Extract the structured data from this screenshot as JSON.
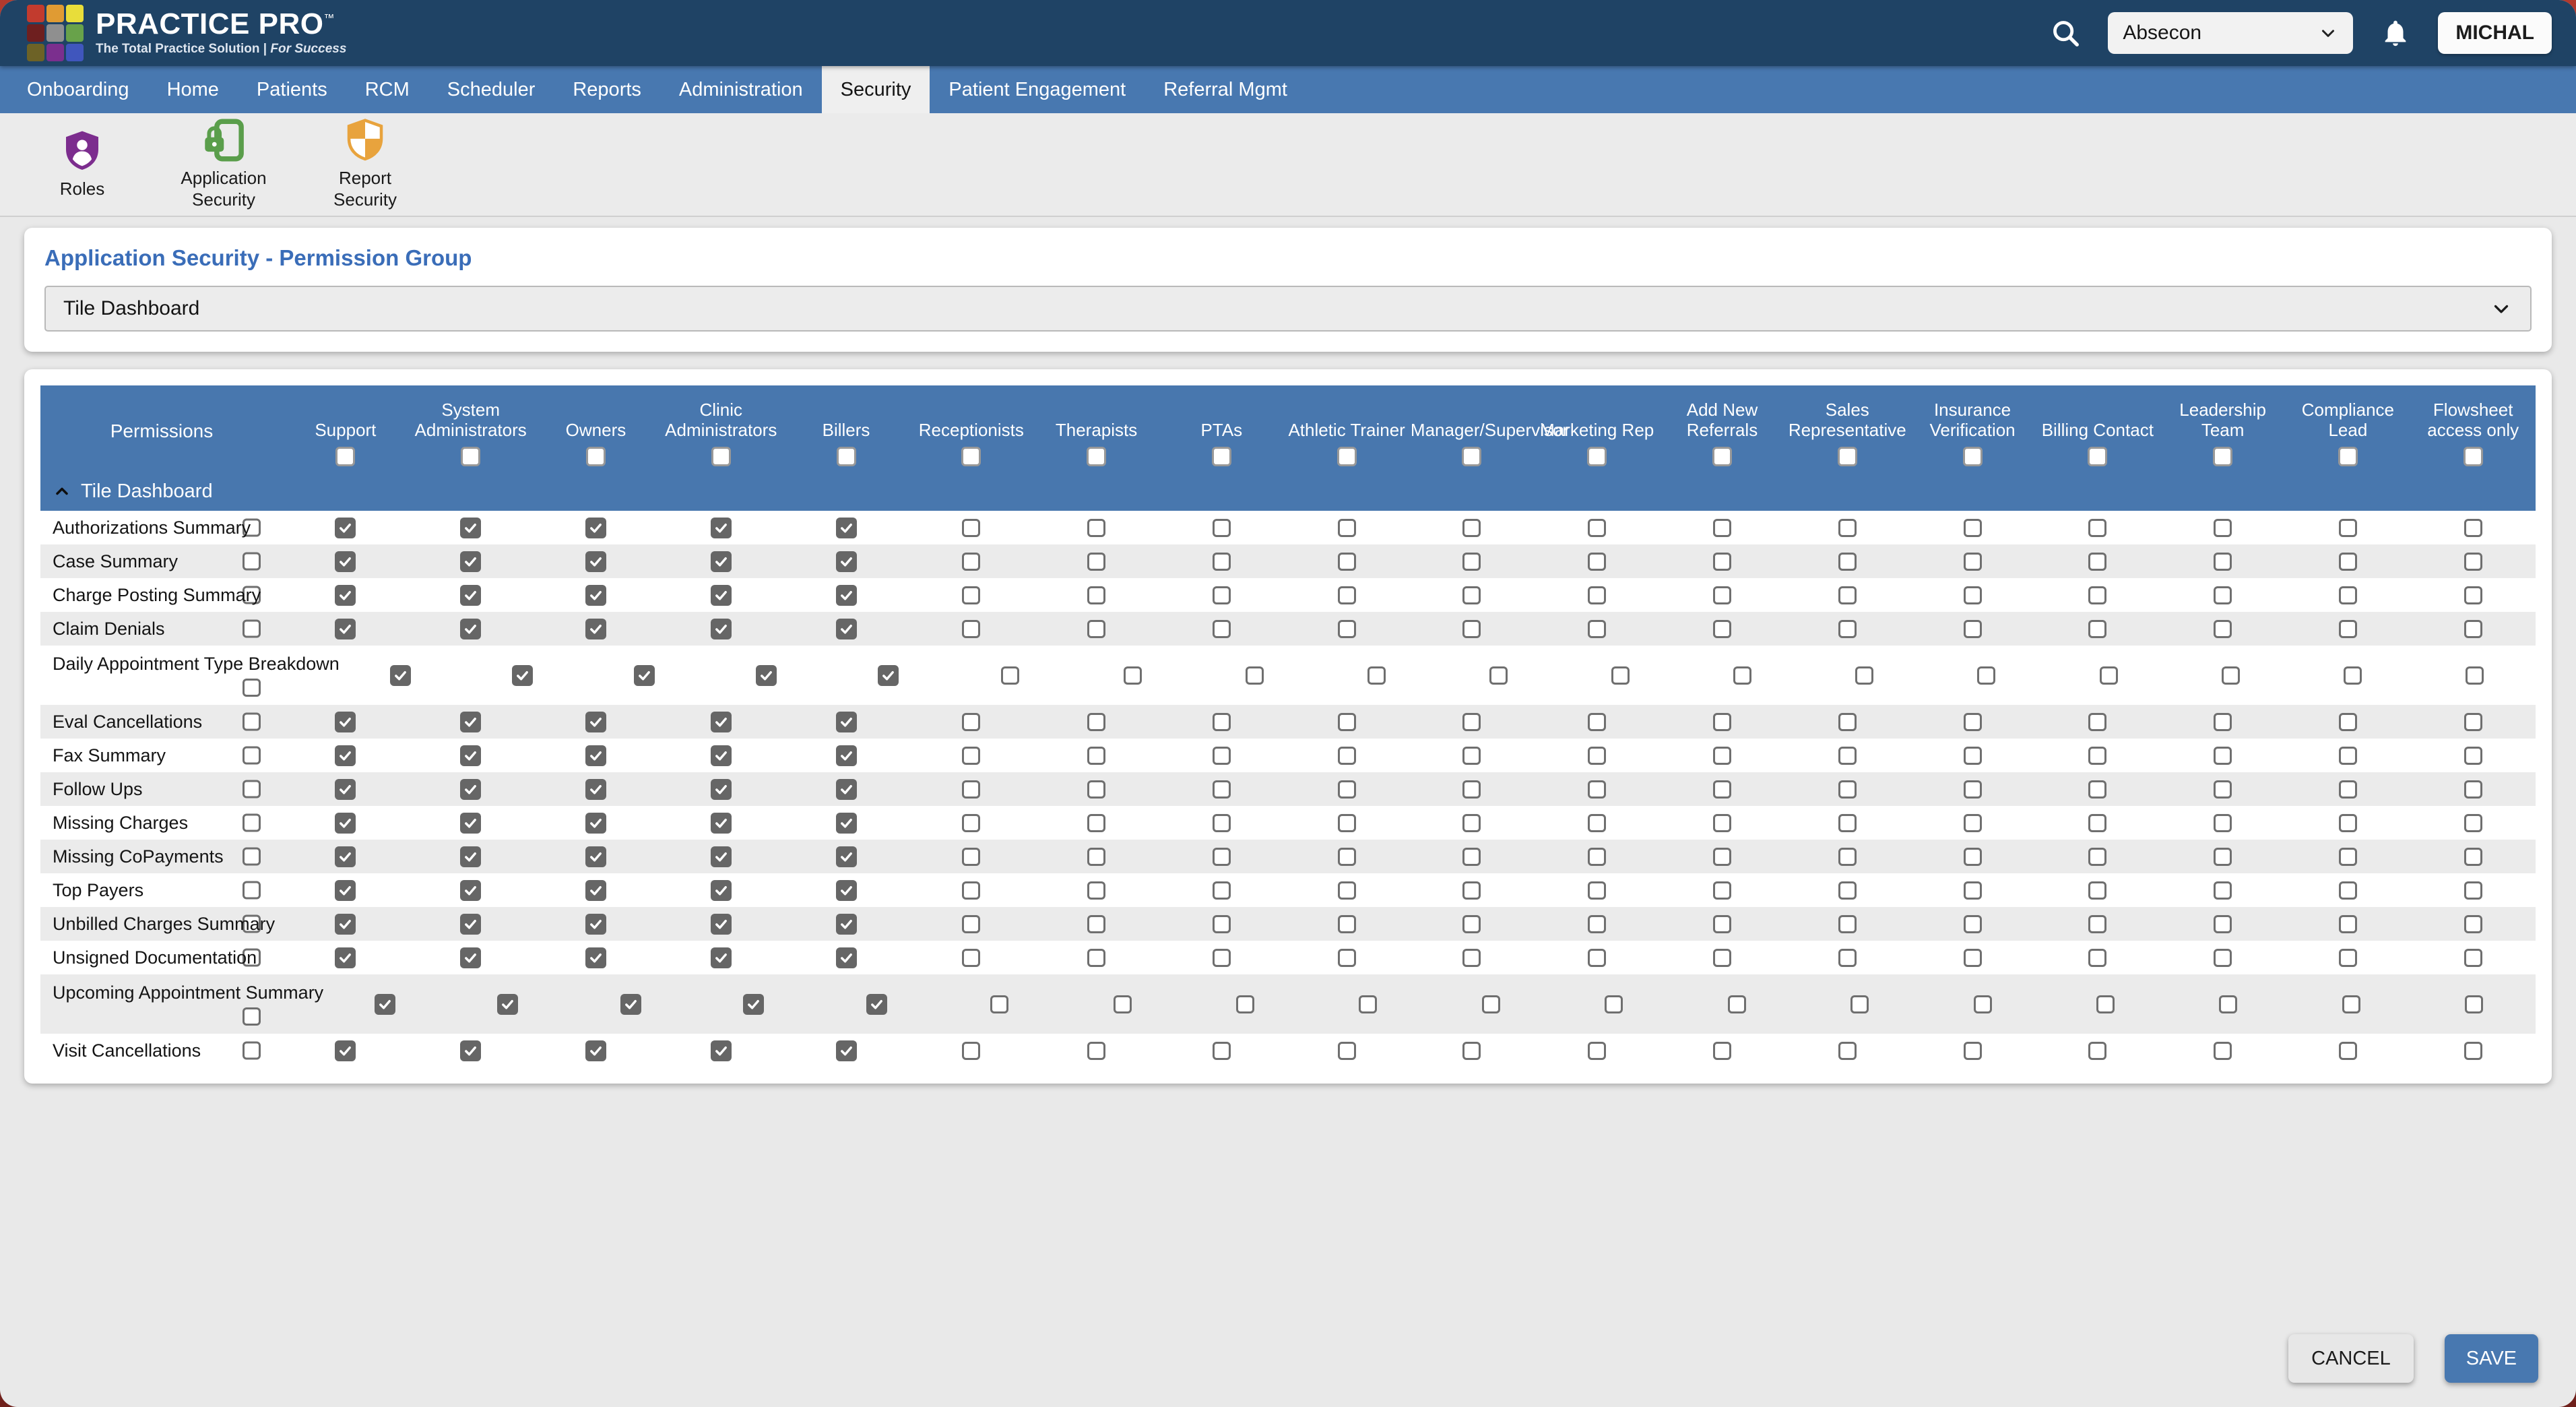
{
  "brand": {
    "name": "Practice Pro",
    "trademark": "™",
    "tagline": "The Total Practice Solution |",
    "tagline_emphasis": "For Success"
  },
  "header": {
    "search_icon": "search-icon",
    "clinic_select": {
      "value": "Absecon"
    },
    "notifications_icon": "bell-icon",
    "user_button": "MICHAL"
  },
  "nav": {
    "tabs": [
      {
        "label": "Onboarding",
        "active": false
      },
      {
        "label": "Home",
        "active": false
      },
      {
        "label": "Patients",
        "active": false
      },
      {
        "label": "RCM",
        "active": false
      },
      {
        "label": "Scheduler",
        "active": false
      },
      {
        "label": "Reports",
        "active": false
      },
      {
        "label": "Administration",
        "active": false
      },
      {
        "label": "Security",
        "active": true
      },
      {
        "label": "Patient Engagement",
        "active": false
      },
      {
        "label": "Referral Mgmt",
        "active": false
      }
    ]
  },
  "toolbar": {
    "items": [
      {
        "label": "Roles",
        "icon": "roles-shield-person-icon"
      },
      {
        "label": "Application Security",
        "icon": "application-security-lock-icon"
      },
      {
        "label": "Report Security",
        "icon": "report-security-shield-icon"
      }
    ]
  },
  "content": {
    "title": "Application Security - Permission Group",
    "group_select": {
      "value": "Tile Dashboard"
    }
  },
  "table": {
    "permissions_header": "Permissions",
    "group": {
      "label": "Tile Dashboard",
      "collapse_icon": "chevron-up-icon"
    },
    "role_columns": [
      {
        "label": "Support",
        "checked": false
      },
      {
        "label": "System Administrators",
        "checked": false
      },
      {
        "label": "Owners",
        "checked": false
      },
      {
        "label": "Clinic Administrators",
        "checked": false
      },
      {
        "label": "Billers",
        "checked": false
      },
      {
        "label": "Receptionists",
        "checked": false
      },
      {
        "label": "Therapists",
        "checked": false
      },
      {
        "label": "PTAs",
        "checked": false
      },
      {
        "label": "Athletic Trainer",
        "checked": false
      },
      {
        "label": "Manager/Supervisor",
        "checked": false
      },
      {
        "label": "Marketing Rep",
        "checked": false
      },
      {
        "label": "Add New Referrals",
        "checked": false
      },
      {
        "label": "Sales Representative",
        "checked": false
      },
      {
        "label": "Insurance Verification",
        "checked": false
      },
      {
        "label": "Billing Contact",
        "checked": false
      },
      {
        "label": "Leadership Team",
        "checked": false
      },
      {
        "label": "Compliance Lead",
        "checked": false
      },
      {
        "label": "Flowsheet access only",
        "checked": false
      }
    ],
    "rows": [
      {
        "label": "Authorizations Summary",
        "select_checked": false,
        "checks": [
          true,
          true,
          true,
          true,
          true,
          false,
          false,
          false,
          false,
          false,
          false,
          false,
          false,
          false,
          false,
          false,
          false,
          false
        ]
      },
      {
        "label": "Case Summary",
        "select_checked": false,
        "checks": [
          true,
          true,
          true,
          true,
          true,
          false,
          false,
          false,
          false,
          false,
          false,
          false,
          false,
          false,
          false,
          false,
          false,
          false
        ]
      },
      {
        "label": "Charge Posting Summary",
        "select_checked": false,
        "checks": [
          true,
          true,
          true,
          true,
          true,
          false,
          false,
          false,
          false,
          false,
          false,
          false,
          false,
          false,
          false,
          false,
          false,
          false
        ]
      },
      {
        "label": "Claim Denials",
        "select_checked": false,
        "checks": [
          true,
          true,
          true,
          true,
          true,
          false,
          false,
          false,
          false,
          false,
          false,
          false,
          false,
          false,
          false,
          false,
          false,
          false
        ]
      },
      {
        "label": "Daily Appointment Type Breakdown",
        "select_checked": false,
        "checks": [
          true,
          true,
          true,
          true,
          true,
          false,
          false,
          false,
          false,
          false,
          false,
          false,
          false,
          false,
          false,
          false,
          false,
          false
        ]
      },
      {
        "label": "Eval Cancellations",
        "select_checked": false,
        "checks": [
          true,
          true,
          true,
          true,
          true,
          false,
          false,
          false,
          false,
          false,
          false,
          false,
          false,
          false,
          false,
          false,
          false,
          false
        ]
      },
      {
        "label": "Fax Summary",
        "select_checked": false,
        "checks": [
          true,
          true,
          true,
          true,
          true,
          false,
          false,
          false,
          false,
          false,
          false,
          false,
          false,
          false,
          false,
          false,
          false,
          false
        ]
      },
      {
        "label": "Follow Ups",
        "select_checked": false,
        "checks": [
          true,
          true,
          true,
          true,
          true,
          false,
          false,
          false,
          false,
          false,
          false,
          false,
          false,
          false,
          false,
          false,
          false,
          false
        ]
      },
      {
        "label": "Missing Charges",
        "select_checked": false,
        "checks": [
          true,
          true,
          true,
          true,
          true,
          false,
          false,
          false,
          false,
          false,
          false,
          false,
          false,
          false,
          false,
          false,
          false,
          false
        ]
      },
      {
        "label": "Missing CoPayments",
        "select_checked": false,
        "checks": [
          true,
          true,
          true,
          true,
          true,
          false,
          false,
          false,
          false,
          false,
          false,
          false,
          false,
          false,
          false,
          false,
          false,
          false
        ]
      },
      {
        "label": "Top Payers",
        "select_checked": false,
        "checks": [
          true,
          true,
          true,
          true,
          true,
          false,
          false,
          false,
          false,
          false,
          false,
          false,
          false,
          false,
          false,
          false,
          false,
          false
        ]
      },
      {
        "label": "Unbilled Charges Summary",
        "select_checked": false,
        "checks": [
          true,
          true,
          true,
          true,
          true,
          false,
          false,
          false,
          false,
          false,
          false,
          false,
          false,
          false,
          false,
          false,
          false,
          false
        ]
      },
      {
        "label": "Unsigned Documentation",
        "select_checked": false,
        "checks": [
          true,
          true,
          true,
          true,
          true,
          false,
          false,
          false,
          false,
          false,
          false,
          false,
          false,
          false,
          false,
          false,
          false,
          false
        ]
      },
      {
        "label": "Upcoming Appointment Summary",
        "select_checked": false,
        "checks": [
          true,
          true,
          true,
          true,
          true,
          false,
          false,
          false,
          false,
          false,
          false,
          false,
          false,
          false,
          false,
          false,
          false,
          false
        ]
      },
      {
        "label": "Visit Cancellations",
        "select_checked": false,
        "checks": [
          true,
          true,
          true,
          true,
          true,
          false,
          false,
          false,
          false,
          false,
          false,
          false,
          false,
          false,
          false,
          false,
          false,
          false
        ]
      }
    ]
  },
  "actions": {
    "cancel_label": "CANCEL",
    "save_label": "SAVE"
  },
  "colors": {
    "header_navy": "#1f4365",
    "nav_blue": "#4878b0",
    "table_header_blue": "#4877ae",
    "accent_blue": "#3a6db8",
    "checked_checkbox_gray": "#666666",
    "row_alt_gray": "#ebebeb",
    "page_bg": "#e9e9e9",
    "frame_red": "#8e2722",
    "roles_purple": "#7c2d8e",
    "app_security_green": "#5a9e4b",
    "report_security_amber": "#e8a33d",
    "logo_squares": [
      "#c23b2e",
      "#e09b33",
      "#e8dd3a",
      "#6e1f1f",
      "#8f8f8f",
      "#68a24a",
      "#6d6226",
      "#7b2f8e",
      "#4056bd"
    ]
  }
}
